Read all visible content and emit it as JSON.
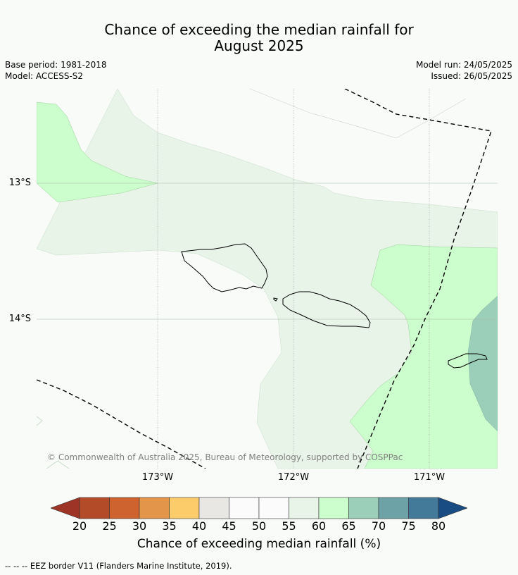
{
  "title_line1": "Chance of exceeding the median rainfall for",
  "title_line2": "August 2025",
  "meta_left": {
    "base_period": "Base period: 1981-2018",
    "model": "Model: ACCESS-S2"
  },
  "meta_right": {
    "model_run": "Model run: 24/05/2025",
    "issued": "Issued: 26/05/2025"
  },
  "map": {
    "lat_labels": [
      "13°S",
      "14°S"
    ],
    "lon_labels": [
      "173°W",
      "172°W",
      "171°W"
    ],
    "copyright": "© Commonwealth of Australia 2025, Bureau of Meteorology, supported by COSPPac",
    "region_colors": {
      "55-60": "#e8f4e8",
      "60-65": "#ccfdcc",
      "65-70": "#9bcfb9",
      "background": "#f9fbf9"
    }
  },
  "colorbar": {
    "ticks": [
      "20",
      "25",
      "30",
      "35",
      "40",
      "45",
      "50",
      "55",
      "60",
      "65",
      "70",
      "75",
      "80"
    ],
    "colors": [
      "#9e3425",
      "#b34a28",
      "#ce6330",
      "#e3954a",
      "#fdcc6a",
      "#e9e7e3",
      "#fbfbfb",
      "#fbfbfb",
      "#e8f4e8",
      "#ccfdcc",
      "#9bcfb9",
      "#6da3a7",
      "#437a9a",
      "#194c82"
    ],
    "label": "Chance of exceeding median rainfall (%)"
  },
  "footnote": "-- -- -- EEZ border V11 (Flanders Marine Institute, 2019)."
}
